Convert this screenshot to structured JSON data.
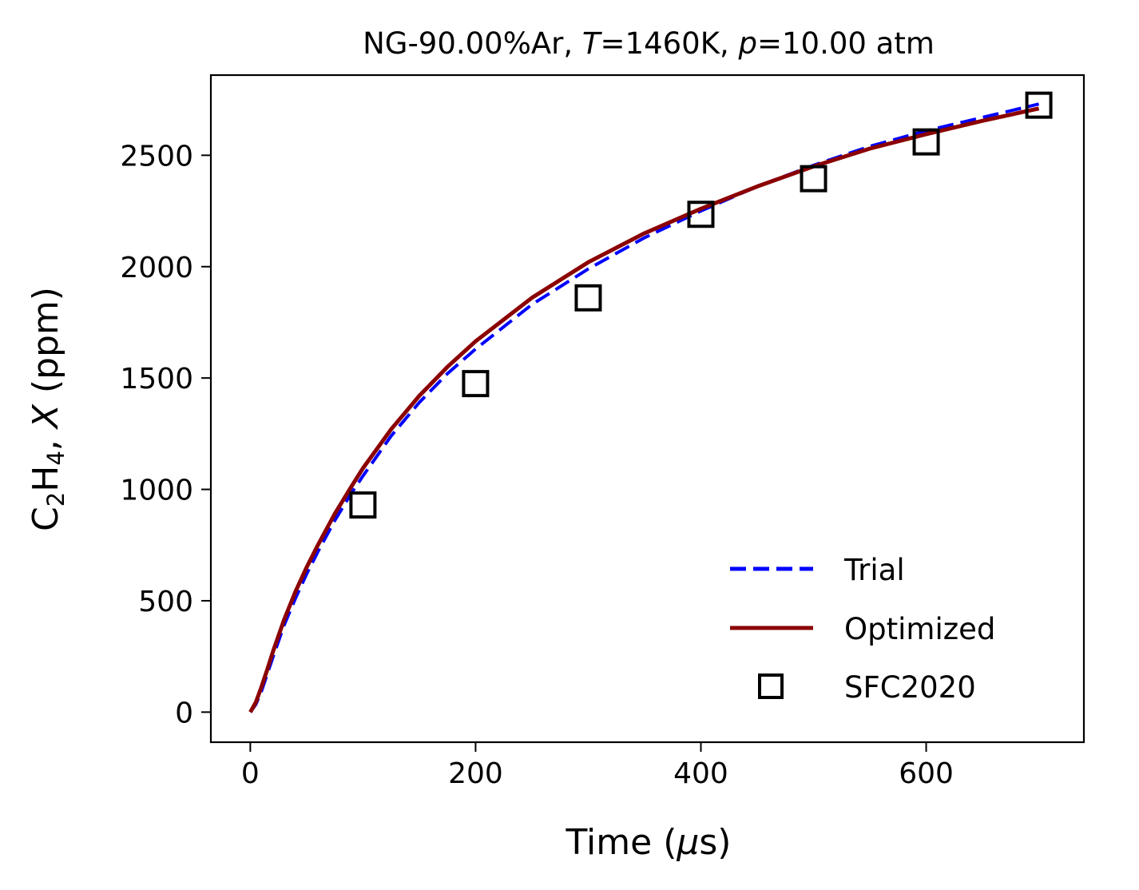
{
  "chart_data": {
    "type": "line",
    "title": {
      "prefix": "NG-90.00%Ar, ",
      "T_symbol": "T",
      "T_value": "=1460K, ",
      "p_symbol": "p",
      "p_value": "=10.00 atm"
    },
    "xlabel": {
      "prefix": "Time (",
      "mu": "μ",
      "suffix": "s)"
    },
    "ylabel": {
      "c": "C",
      "sub2": "2",
      "h": "H",
      "sub4": "4",
      "comma": ", ",
      "x_symbol": "X",
      "suffix": " (ppm)"
    },
    "xlim": [
      -35,
      740
    ],
    "ylim": [
      -135,
      2860
    ],
    "xticks": [
      0,
      200,
      400,
      600
    ],
    "yticks": [
      0,
      500,
      1000,
      1500,
      2000,
      2500
    ],
    "grid": false,
    "legend_position": "lower-right",
    "series": [
      {
        "name": "Trial",
        "style": "dashed",
        "color": "#0000ff",
        "x": [
          0,
          5,
          10,
          15,
          20,
          30,
          40,
          50,
          60,
          75,
          90,
          100,
          125,
          150,
          175,
          200,
          250,
          300,
          350,
          400,
          450,
          500,
          550,
          600,
          650,
          700
        ],
        "y": [
          0,
          35,
          95,
          170,
          245,
          390,
          510,
          620,
          720,
          860,
          985,
          1060,
          1240,
          1390,
          1520,
          1630,
          1830,
          1990,
          2130,
          2250,
          2360,
          2455,
          2540,
          2610,
          2670,
          2730
        ]
      },
      {
        "name": "Optimized",
        "style": "solid",
        "color": "#8b0000",
        "x": [
          0,
          5,
          10,
          15,
          20,
          30,
          40,
          50,
          60,
          75,
          90,
          100,
          125,
          150,
          175,
          200,
          250,
          300,
          350,
          400,
          450,
          500,
          550,
          600,
          650,
          700
        ],
        "y": [
          0,
          45,
          115,
          190,
          270,
          415,
          540,
          650,
          750,
          890,
          1015,
          1095,
          1270,
          1420,
          1550,
          1665,
          1860,
          2020,
          2150,
          2260,
          2360,
          2450,
          2530,
          2595,
          2655,
          2710
        ]
      },
      {
        "name": "SFC2020",
        "style": "markers",
        "marker": "square",
        "color": "#000000",
        "x": [
          100,
          200,
          300,
          400,
          500,
          600,
          700
        ],
        "y": [
          930,
          1475,
          1860,
          2235,
          2395,
          2560,
          2725
        ]
      }
    ]
  }
}
